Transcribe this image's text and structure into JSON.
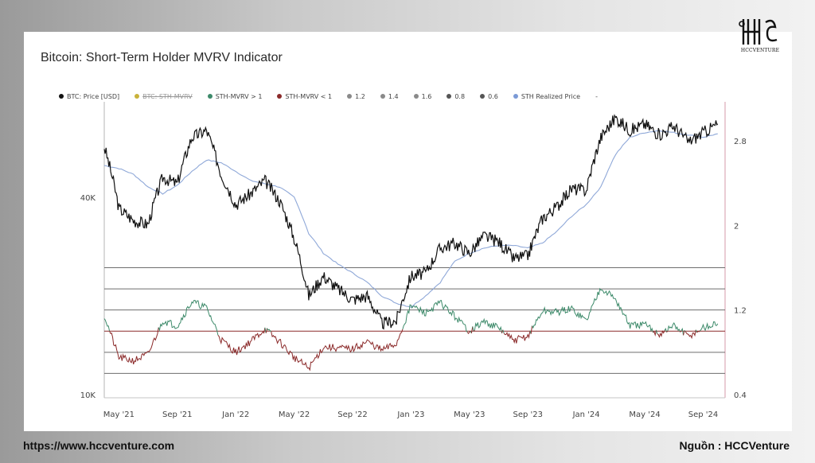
{
  "brand": {
    "logo_text": "HCCVENTURE",
    "website": "https://www.hccventure.com",
    "source": "Nguồn : HCCVenture"
  },
  "chart_data": {
    "type": "line",
    "title": "Bitcoin: Short-Term Holder MVRV Indicator",
    "legend": [
      {
        "name": "BTC: Price [USD]",
        "color": "#111111"
      },
      {
        "name": "BTC: STH-MVRV",
        "color": "#c9b23a",
        "disabled": true
      },
      {
        "name": "STH-MVRV > 1",
        "color": "#3d8a6a"
      },
      {
        "name": "STH-MVRV < 1",
        "color": "#8b2a2a"
      },
      {
        "name": "1.2",
        "color": "#8a8a8a"
      },
      {
        "name": "1.4",
        "color": "#8a8a8a"
      },
      {
        "name": "1.6",
        "color": "#8a8a8a"
      },
      {
        "name": "0.8",
        "color": "#555555"
      },
      {
        "name": "0.6",
        "color": "#555555"
      },
      {
        "name": "STH Realized Price",
        "color": "#7b9ad6"
      },
      {
        "name": "-",
        "color": ""
      }
    ],
    "x_ticks": [
      "May '21",
      "Sep '21",
      "Jan '22",
      "May '22",
      "Sep '22",
      "Jan '23",
      "May '23",
      "Sep '23",
      "Jan '24",
      "May '24",
      "Sep '24"
    ],
    "left_axis": {
      "scale": "log",
      "ticks": [
        "40K",
        "10K"
      ]
    },
    "right_axis": {
      "ticks": [
        "2.8",
        "2",
        "1.2",
        "0.4"
      ]
    },
    "threshold_lines": [
      1.6,
      1.4,
      1.2,
      1.0,
      0.8,
      0.6
    ],
    "series": [
      {
        "name": "BTC: Price [USD]",
        "unit": "USD",
        "x": [
          "2021-04",
          "2021-05",
          "2021-06",
          "2021-07",
          "2021-08",
          "2021-09",
          "2021-10",
          "2021-11",
          "2021-12",
          "2022-01",
          "2022-02",
          "2022-03",
          "2022-04",
          "2022-05",
          "2022-06",
          "2022-07",
          "2022-08",
          "2022-09",
          "2022-10",
          "2022-11",
          "2022-12",
          "2023-01",
          "2023-02",
          "2023-03",
          "2023-04",
          "2023-05",
          "2023-06",
          "2023-07",
          "2023-08",
          "2023-09",
          "2023-10",
          "2023-11",
          "2023-12",
          "2024-01",
          "2024-02",
          "2024-03",
          "2024-04",
          "2024-05",
          "2024-06",
          "2024-07",
          "2024-08",
          "2024-09",
          "2024-10"
        ],
        "values": [
          57000,
          37000,
          34000,
          33000,
          46000,
          44000,
          61000,
          64000,
          47000,
          38000,
          41000,
          45000,
          39000,
          30000,
          20000,
          23000,
          21000,
          19500,
          20000,
          16500,
          16800,
          23000,
          23500,
          28000,
          29000,
          27000,
          30500,
          29300,
          26000,
          26500,
          34500,
          37500,
          42500,
          42000,
          61000,
          70000,
          64000,
          67000,
          62000,
          66000,
          59000,
          63000,
          67000
        ]
      },
      {
        "name": "STH Realized Price",
        "unit": "USD",
        "x": [
          "2021-04",
          "2021-05",
          "2021-06",
          "2021-07",
          "2021-08",
          "2021-09",
          "2021-10",
          "2021-11",
          "2021-12",
          "2022-01",
          "2022-02",
          "2022-03",
          "2022-04",
          "2022-05",
          "2022-06",
          "2022-07",
          "2022-08",
          "2022-09",
          "2022-10",
          "2022-11",
          "2022-12",
          "2023-01",
          "2023-02",
          "2023-03",
          "2023-04",
          "2023-05",
          "2023-06",
          "2023-07",
          "2023-08",
          "2023-09",
          "2023-10",
          "2023-11",
          "2023-12",
          "2024-01",
          "2024-02",
          "2024-03",
          "2024-04",
          "2024-05",
          "2024-06",
          "2024-07",
          "2024-08",
          "2024-09",
          "2024-10"
        ],
        "values": [
          50000,
          49000,
          47000,
          43000,
          41000,
          43500,
          48000,
          52000,
          51000,
          48000,
          45000,
          44000,
          43000,
          40000,
          31000,
          27000,
          25000,
          23500,
          22000,
          20000,
          19000,
          18500,
          20000,
          22000,
          25500,
          27000,
          28000,
          28500,
          28500,
          28000,
          29000,
          31500,
          35000,
          38000,
          43000,
          54000,
          61000,
          63000,
          64000,
          63000,
          62000,
          61000,
          62500
        ]
      },
      {
        "name": "BTC: STH-MVRV",
        "unit": "ratio",
        "x": [
          "2021-04",
          "2021-05",
          "2021-06",
          "2021-07",
          "2021-08",
          "2021-09",
          "2021-10",
          "2021-11",
          "2021-12",
          "2022-01",
          "2022-02",
          "2022-03",
          "2022-04",
          "2022-05",
          "2022-06",
          "2022-07",
          "2022-08",
          "2022-09",
          "2022-10",
          "2022-11",
          "2022-12",
          "2023-01",
          "2023-02",
          "2023-03",
          "2023-04",
          "2023-05",
          "2023-06",
          "2023-07",
          "2023-08",
          "2023-09",
          "2023-10",
          "2023-11",
          "2023-12",
          "2024-01",
          "2024-02",
          "2024-03",
          "2024-04",
          "2024-05",
          "2024-06",
          "2024-07",
          "2024-08",
          "2024-09",
          "2024-10"
        ],
        "values": [
          1.15,
          0.75,
          0.72,
          0.78,
          1.1,
          1.05,
          1.28,
          1.22,
          0.92,
          0.8,
          0.9,
          1.02,
          0.9,
          0.75,
          0.65,
          0.85,
          0.84,
          0.83,
          0.9,
          0.82,
          0.88,
          1.24,
          1.17,
          1.27,
          1.14,
          1.0,
          1.09,
          1.03,
          0.91,
          0.95,
          1.19,
          1.18,
          1.21,
          1.1,
          1.42,
          1.3,
          1.05,
          1.06,
          0.97,
          1.05,
          0.95,
          1.03,
          1.07
        ]
      }
    ]
  }
}
